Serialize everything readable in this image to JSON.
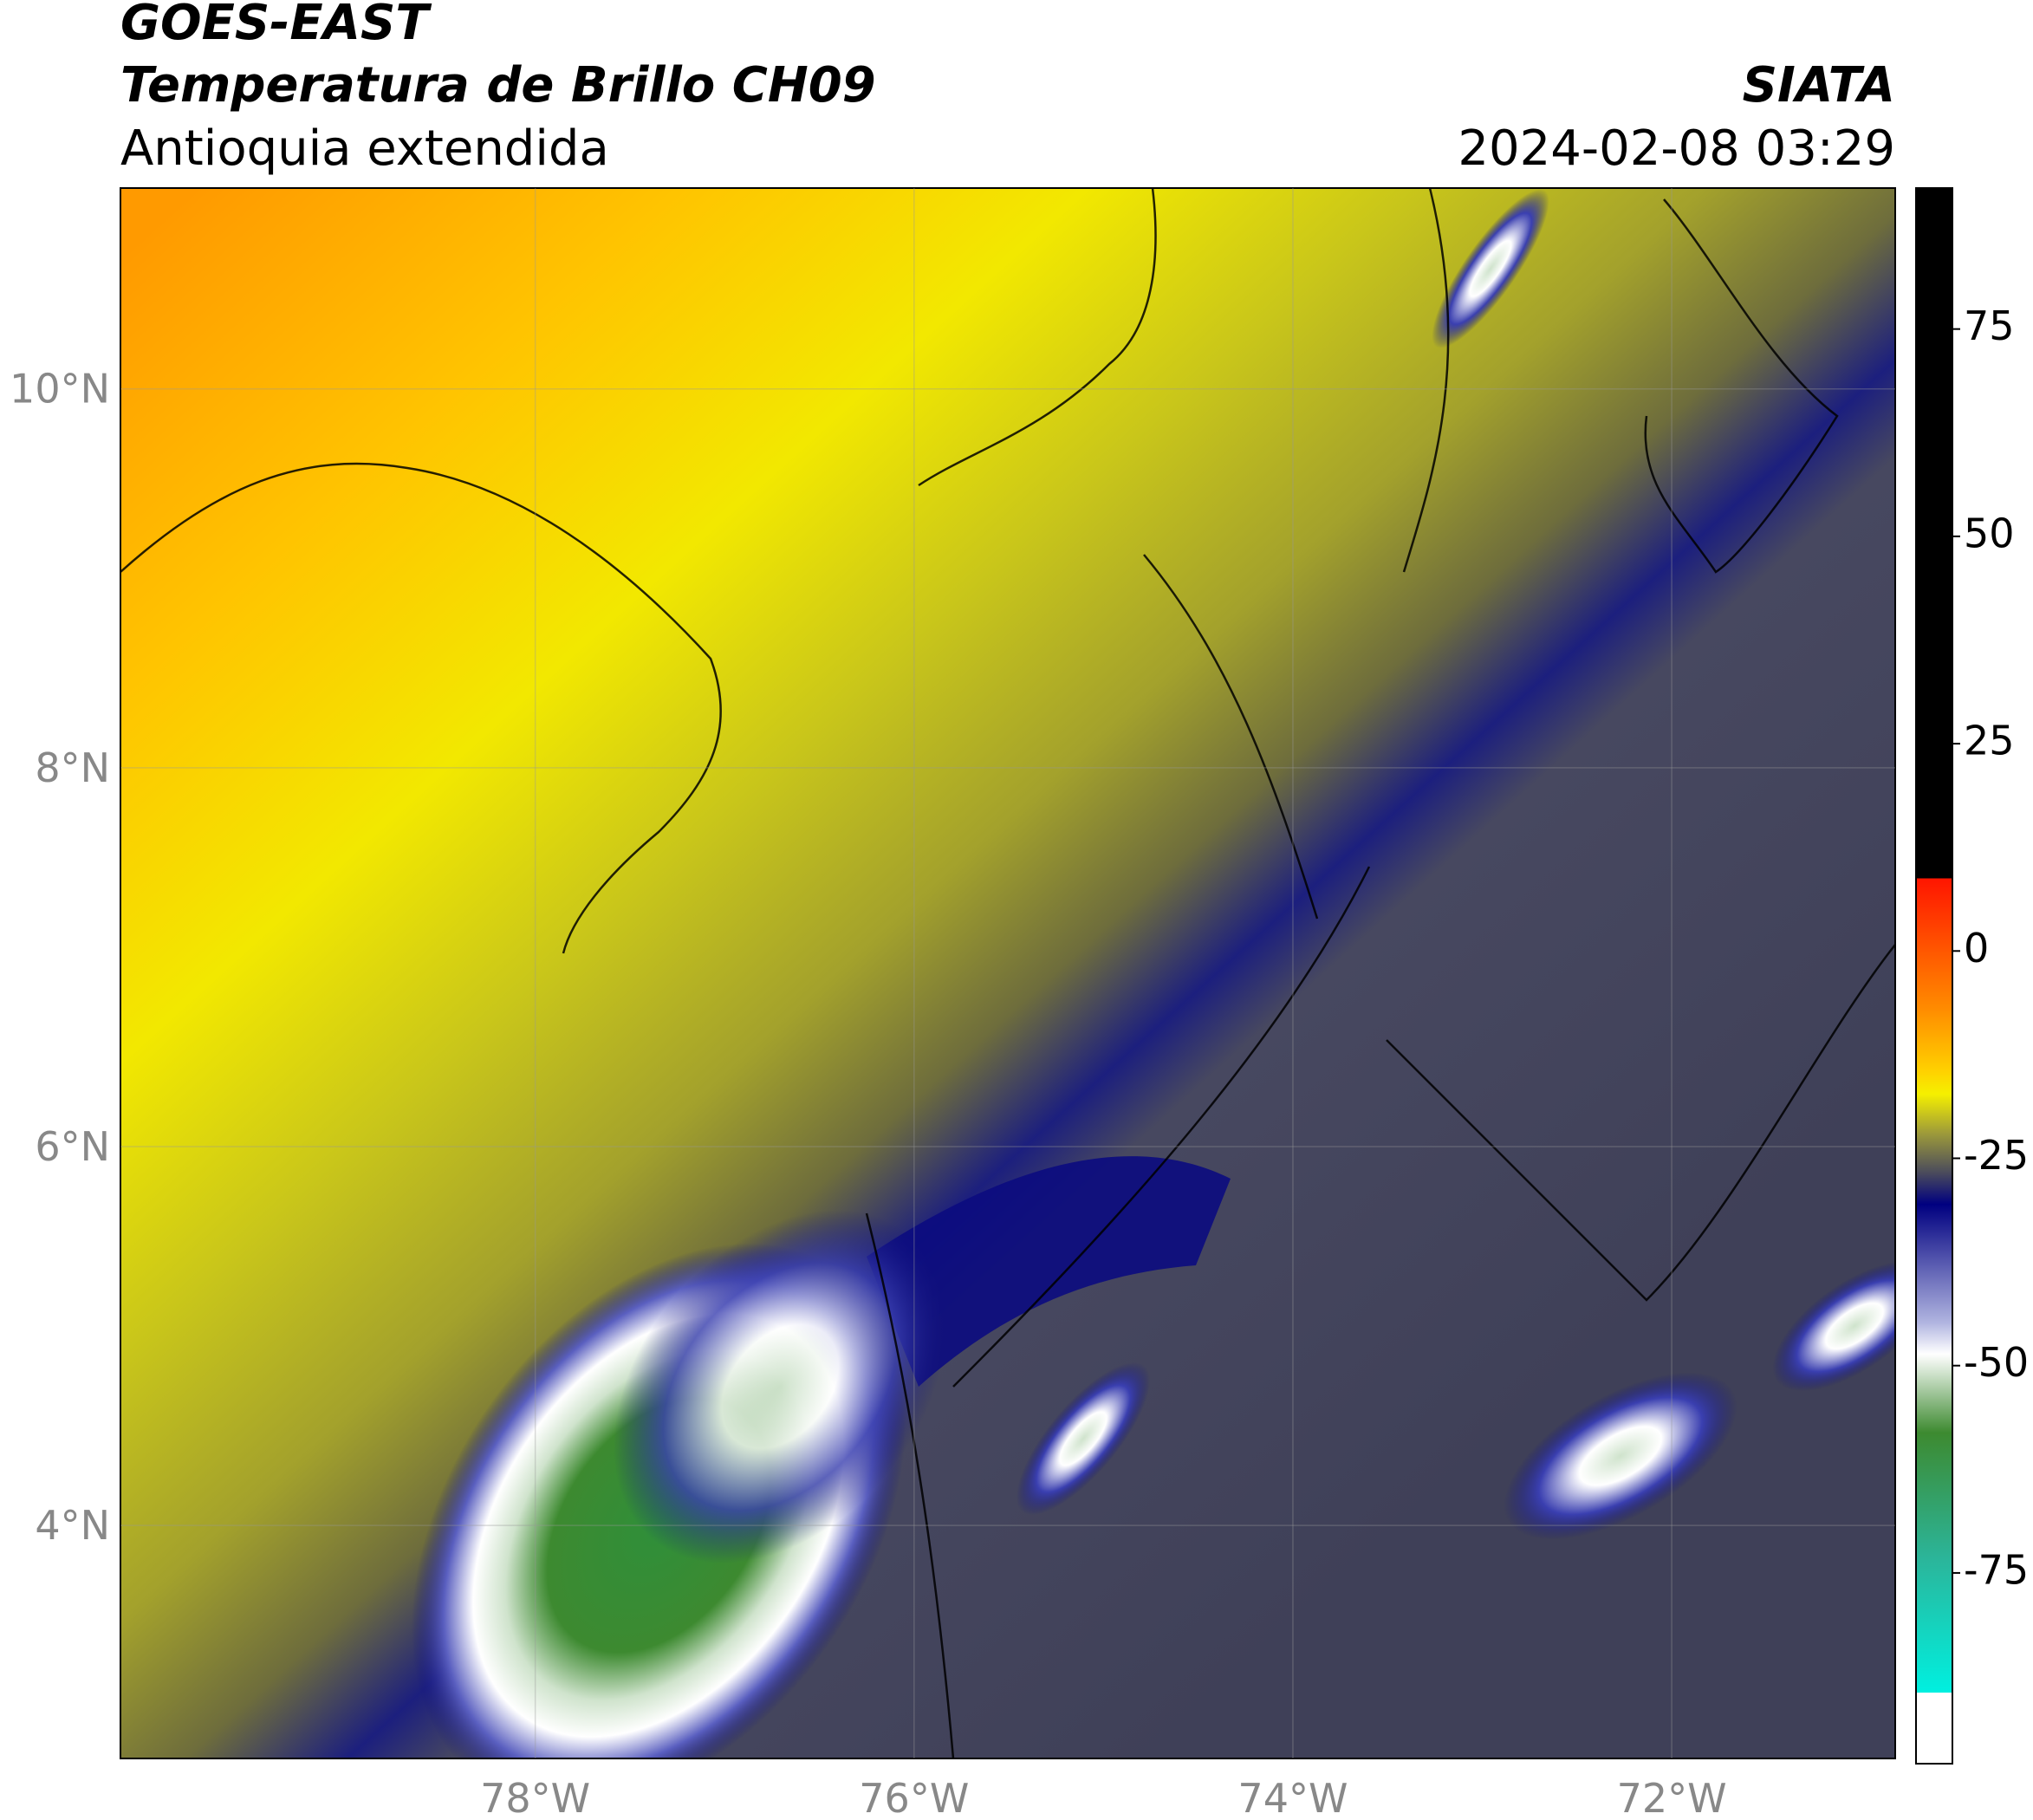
{
  "header": {
    "title": "GOES-EAST",
    "subtitle": "Temperatura de Brillo CH09",
    "region": "Antioquia extendida",
    "source": "SIATA",
    "datetime": "2024-02-08 03:29"
  },
  "map": {
    "xlim": [
      -80.19,
      -70.82
    ],
    "ylim": [
      2.77,
      11.06
    ],
    "xticks": [
      {
        "value": -78,
        "label": "78°W"
      },
      {
        "value": -76,
        "label": "76°W"
      },
      {
        "value": -74,
        "label": "74°W"
      },
      {
        "value": -72,
        "label": "72°W"
      }
    ],
    "yticks": [
      {
        "value": 4,
        "label": "4°N"
      },
      {
        "value": 6,
        "label": "6°N"
      },
      {
        "value": 8,
        "label": "8°N"
      },
      {
        "value": 10,
        "label": "10°N"
      }
    ],
    "grid": true
  },
  "colorbar": {
    "lim": [
      -98,
      92
    ],
    "ticks": [
      -75,
      -50,
      -25,
      0,
      25,
      50,
      75
    ]
  }
}
